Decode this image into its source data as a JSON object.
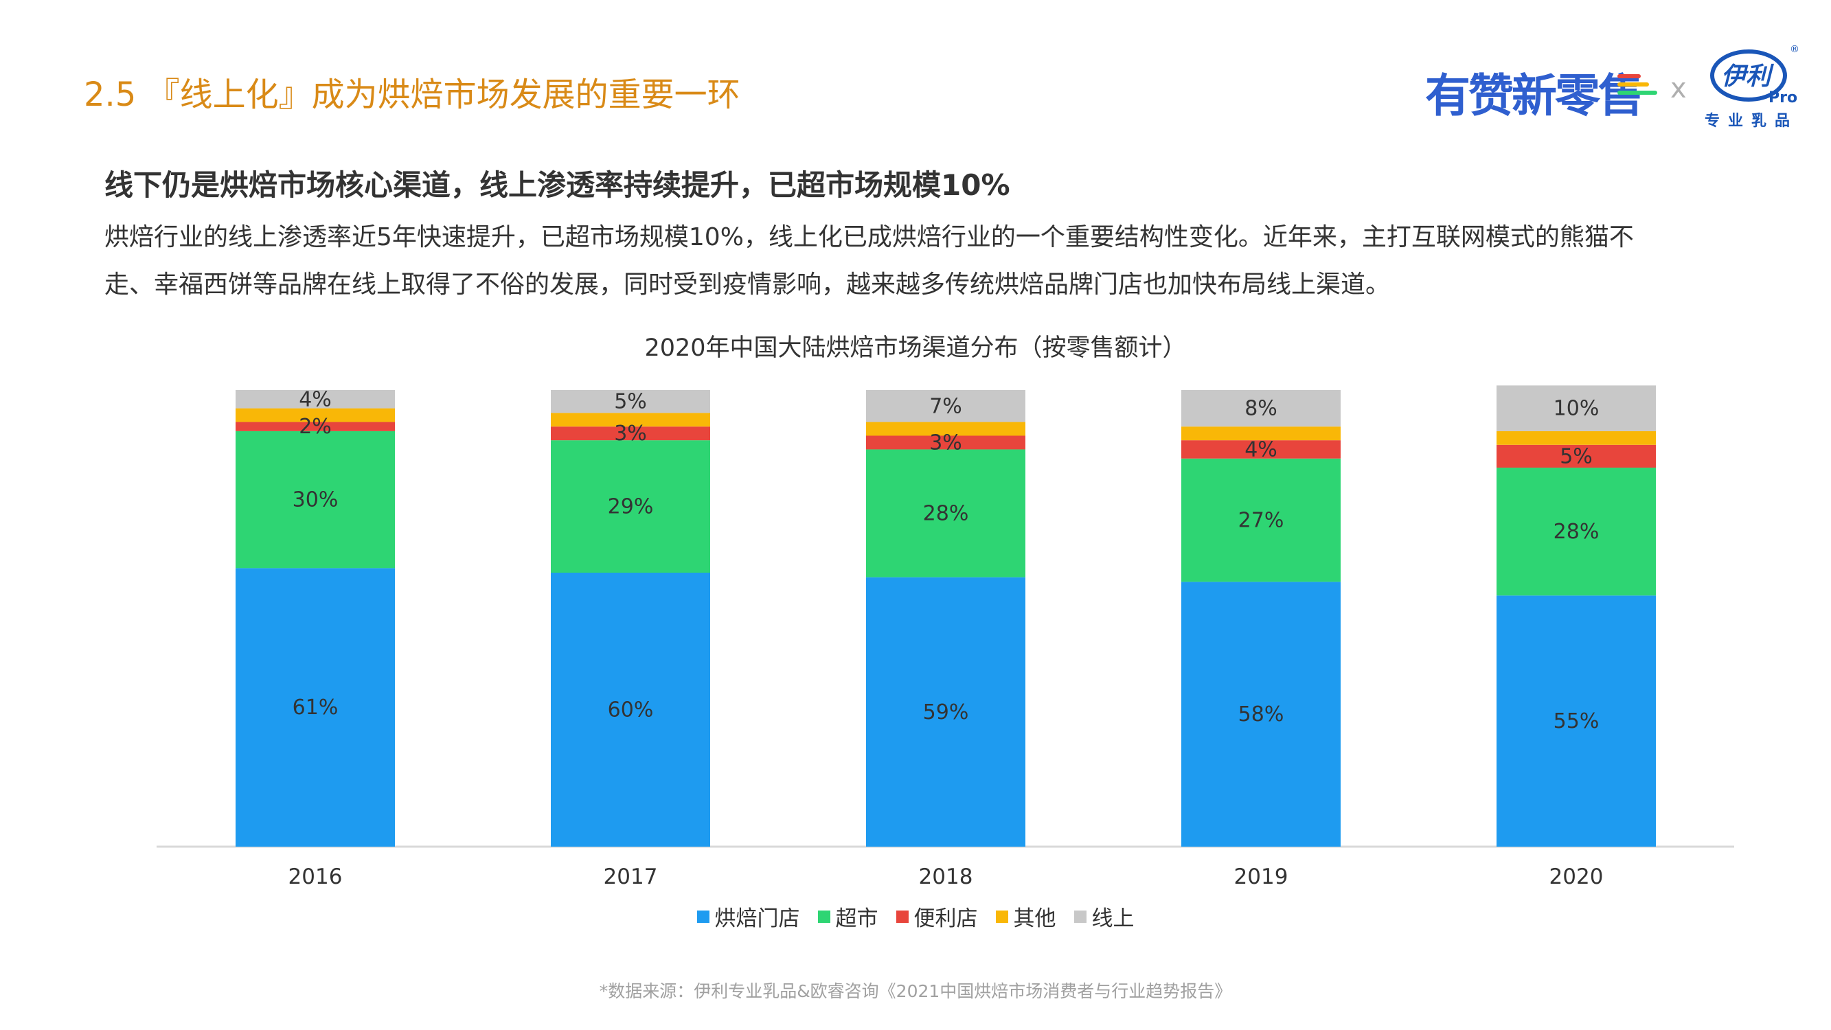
{
  "header": {
    "title": "2.5 『线上化』成为烘焙市场发展的重要一环",
    "brand_text": "有赞新零售",
    "brand_separator": "x",
    "logo_text": "伊利",
    "logo_pro": "Pro",
    "logo_reg": "®",
    "logo_subtitle": "专业乳品"
  },
  "body": {
    "headline": "线下仍是烘焙市场核心渠道，线上渗透率持续提升，已超市场规模10%",
    "paragraph_line1": "烘焙行业的线上渗透率近5年快速提升，已超市场规模10%，线上化已成烘焙行业的一个重要结构性变化。近年来，主打互联网模式的熊猫不",
    "paragraph_line2": "走、幸福西饼等品牌在线上取得了不俗的发展，同时受到疫情影响，越来越多传统烘焙品牌门店也加快布局线上渠道。"
  },
  "colors": {
    "title_orange": "#D98A17",
    "brand_blue": "#2F5FCF",
    "bakery": "#1E9BF0",
    "supermarket": "#2ED573",
    "convenience": "#E8453C",
    "other": "#F9B707",
    "online": "#C8C8C8"
  },
  "chart_data": {
    "type": "bar",
    "stacked": true,
    "title": "2020年中国大陆烘焙市场渠道分布（按零售额计）",
    "categories": [
      "2016",
      "2017",
      "2018",
      "2019",
      "2020"
    ],
    "series": [
      {
        "name": "烘焙门店",
        "color": "#1E9BF0",
        "values": [
          61,
          60,
          59,
          58,
          55
        ],
        "labels": [
          "61%",
          "60%",
          "59%",
          "58%",
          "55%"
        ]
      },
      {
        "name": "超市",
        "color": "#2ED573",
        "values": [
          30,
          29,
          28,
          27,
          28
        ],
        "labels": [
          "30%",
          "29%",
          "28%",
          "27%",
          "28%"
        ]
      },
      {
        "name": "便利店",
        "color": "#E8453C",
        "values": [
          2,
          3,
          3,
          4,
          5
        ],
        "labels": [
          "2%",
          "3%",
          "3%",
          "4%",
          "5%"
        ]
      },
      {
        "name": "其他",
        "color": "#F9B707",
        "values": [
          3,
          3,
          3,
          3,
          3
        ],
        "labels": [
          "",
          "",
          "",
          "",
          ""
        ]
      },
      {
        "name": "线上",
        "color": "#C8C8C8",
        "values": [
          4,
          5,
          7,
          8,
          10
        ],
        "labels": [
          "4%",
          "5%",
          "7%",
          "8%",
          "10%"
        ]
      }
    ],
    "ylim": [
      0,
      100
    ],
    "grid": false,
    "legend_position": "bottom",
    "source": "*数据来源：伊利专业乳品&欧睿咨询《2021中国烘焙市场消费者与行业趋势报告》"
  }
}
